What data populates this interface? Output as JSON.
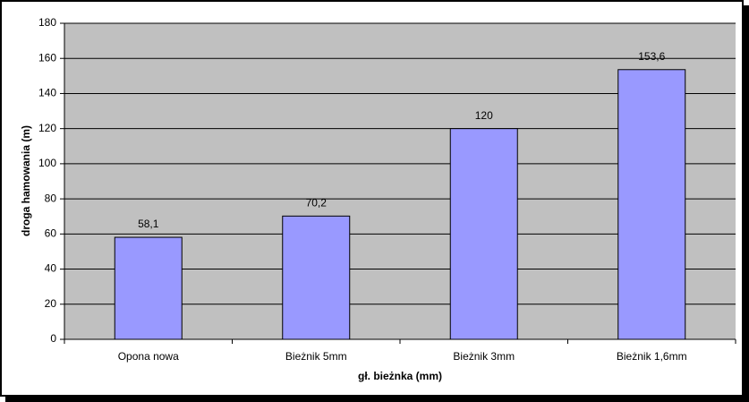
{
  "chart_data": {
    "type": "bar",
    "x_label": "gł. bieżnka (mm)",
    "y_label": "droga hamowania (m)",
    "categories": [
      "Opona nowa",
      "Bieżnik 5mm",
      "Bieżnik 3mm",
      "Bieżnik 1,6mm"
    ],
    "values": [
      58.1,
      70.2,
      120,
      153.6
    ],
    "value_labels": [
      "58,1",
      "70,2",
      "120",
      "153,6"
    ],
    "color": "#9999ff",
    "ylim": [
      0,
      180
    ],
    "yticks": [
      0,
      20,
      40,
      60,
      80,
      100,
      120,
      140,
      160,
      180
    ],
    "grid": true
  }
}
